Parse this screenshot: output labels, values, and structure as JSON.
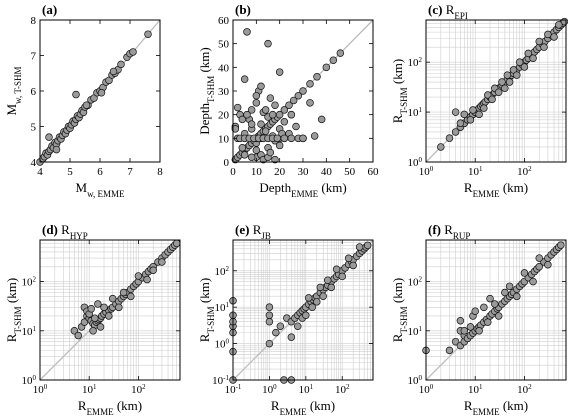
{
  "chart_data": [
    {
      "type": "scatter",
      "panel_label": "(a)",
      "panel_sub": "",
      "xlabel_main": "M",
      "xlabel_sub": "w, EMME",
      "xlabel_unit": "",
      "ylabel_main": "M",
      "ylabel_sub": "w, T-SHM",
      "ylabel_unit": "",
      "scale": "linear",
      "xlim": [
        4,
        8
      ],
      "ylim": [
        4,
        8
      ],
      "ticks": [
        4,
        5,
        6,
        7,
        8
      ],
      "tick_labels": [
        "4",
        "5",
        "6",
        "7",
        "8"
      ],
      "grid": false,
      "x": [
        4.0,
        4.1,
        4.15,
        4.2,
        4.25,
        4.3,
        4.35,
        4.4,
        4.45,
        4.5,
        4.55,
        4.6,
        4.65,
        4.7,
        4.75,
        4.8,
        4.85,
        4.9,
        4.95,
        5.0,
        5.05,
        5.1,
        5.15,
        5.2,
        5.25,
        5.3,
        5.35,
        5.4,
        5.45,
        5.5,
        5.6,
        5.7,
        5.8,
        5.9,
        6.0,
        6.1,
        6.2,
        6.3,
        6.4,
        6.5,
        6.6,
        6.7,
        6.9,
        7.0,
        7.1,
        7.6,
        4.3,
        4.55,
        5.2,
        5.55,
        6.05,
        6.45
      ],
      "y": [
        4.0,
        4.1,
        4.15,
        4.25,
        4.2,
        4.3,
        4.35,
        4.45,
        4.4,
        4.55,
        4.5,
        4.6,
        4.7,
        4.65,
        4.75,
        4.85,
        4.8,
        4.9,
        5.0,
        4.95,
        5.05,
        5.15,
        5.1,
        5.2,
        5.3,
        5.25,
        5.35,
        5.45,
        5.4,
        5.55,
        5.6,
        5.75,
        5.8,
        5.95,
        6.0,
        6.1,
        6.25,
        6.3,
        6.45,
        6.5,
        6.6,
        6.75,
        6.95,
        7.05,
        7.1,
        7.6,
        4.7,
        4.35,
        5.9,
        5.6,
        5.95,
        6.55
      ]
    },
    {
      "type": "scatter",
      "panel_label": "(b)",
      "panel_sub": "",
      "xlabel_main": "Depth",
      "xlabel_sub": "EMME",
      "xlabel_unit": " (km)",
      "ylabel_main": "Depth",
      "ylabel_sub": "T-SHM",
      "ylabel_unit": " (km)",
      "scale": "linear",
      "xlim": [
        0,
        60
      ],
      "ylim": [
        0,
        60
      ],
      "ticks": [
        0,
        10,
        20,
        30,
        40,
        50,
        60
      ],
      "tick_labels": [
        "0",
        "10",
        "20",
        "30",
        "40",
        "50",
        "60"
      ],
      "grid": false,
      "x": [
        1,
        2,
        3,
        4,
        5,
        6,
        7,
        8,
        9,
        10,
        11,
        12,
        13,
        14,
        15,
        16,
        17,
        18,
        19,
        20,
        22,
        24,
        26,
        28,
        30,
        33,
        36,
        40,
        43,
        46,
        1,
        2,
        3,
        4,
        5,
        5,
        7,
        8,
        8,
        10,
        10,
        10,
        11,
        12,
        12,
        13,
        14,
        15,
        15,
        16,
        17,
        18,
        18,
        20,
        20,
        22,
        24,
        25,
        27,
        30,
        33,
        35,
        38,
        10,
        12,
        13,
        15,
        16,
        18,
        8,
        10,
        20,
        22,
        25,
        28,
        5,
        6,
        10,
        12,
        14,
        15,
        17,
        20,
        21,
        25,
        30,
        3,
        5,
        7,
        9,
        11,
        13,
        15,
        17,
        19,
        22,
        8,
        4,
        2,
        6,
        1
      ],
      "y": [
        1,
        2,
        3,
        4,
        5,
        6,
        7,
        8,
        9,
        10,
        11,
        12,
        13,
        14,
        15,
        16,
        17,
        18,
        19,
        20,
        22,
        24,
        26,
        28,
        30,
        33,
        36,
        40,
        43,
        46,
        15,
        10,
        20,
        6,
        3,
        12,
        18,
        14,
        22,
        25,
        8,
        5,
        30,
        16,
        10,
        21,
        13,
        6,
        19,
        27,
        11,
        9,
        24,
        14,
        7,
        17,
        12,
        20,
        15,
        10,
        25,
        11,
        18,
        2,
        3,
        1,
        2,
        4,
        1,
        2,
        10,
        10,
        10,
        10,
        10,
        35,
        55,
        28,
        32,
        22,
        50,
        20,
        38,
        12,
        20,
        10,
        10,
        10,
        10,
        10,
        10,
        10,
        10,
        10,
        10,
        10,
        16,
        18,
        23,
        20,
        14
      ]
    },
    {
      "type": "scatter",
      "panel_label": "(c)",
      "panel_sub": "EPI",
      "xlabel_main": "R",
      "xlabel_sub": "EMME",
      "xlabel_unit": " (km)",
      "ylabel_main": "R",
      "ylabel_sub": "T-SHM",
      "ylabel_unit": " (km)",
      "scale": "log",
      "xlim": [
        1,
        700
      ],
      "ylim": [
        1,
        700
      ],
      "ticks": [
        1,
        10,
        100
      ],
      "tick_labels": [
        "10^0",
        "10^1",
        "10^2"
      ],
      "grid": true,
      "x": [
        2,
        3,
        4,
        5,
        5,
        6,
        6,
        7,
        7,
        8,
        8,
        9,
        9,
        10,
        10,
        11,
        12,
        13,
        14,
        15,
        16,
        18,
        20,
        22,
        25,
        28,
        30,
        35,
        40,
        45,
        50,
        55,
        60,
        70,
        80,
        90,
        100,
        110,
        120,
        140,
        160,
        180,
        200,
        230,
        260,
        300,
        350,
        400,
        450,
        500,
        550,
        600,
        650,
        4,
        5,
        6,
        8,
        9,
        12,
        15,
        18,
        22,
        25,
        30,
        35,
        40,
        45,
        50,
        60,
        70,
        80,
        100,
        120,
        150,
        200,
        250,
        300,
        400,
        500
      ],
      "y": [
        2,
        3,
        4,
        5,
        5,
        6,
        6,
        7,
        7,
        8,
        8,
        9,
        9,
        10,
        10,
        11,
        12,
        13,
        14,
        15,
        16,
        18,
        20,
        22,
        25,
        28,
        30,
        35,
        40,
        45,
        50,
        55,
        60,
        70,
        80,
        90,
        100,
        110,
        120,
        140,
        160,
        180,
        200,
        230,
        260,
        300,
        350,
        400,
        450,
        500,
        550,
        600,
        650,
        10,
        6,
        9,
        7,
        11,
        9,
        12,
        22,
        18,
        30,
        25,
        40,
        30,
        55,
        40,
        70,
        55,
        100,
        80,
        150,
        120,
        260,
        200,
        360,
        320,
        560
      ]
    },
    {
      "type": "scatter",
      "panel_label": "(d)",
      "panel_sub": "HYP",
      "xlabel_main": "R",
      "xlabel_sub": "EMME",
      "xlabel_unit": " (km)",
      "ylabel_main": "R",
      "ylabel_sub": "T-SHM",
      "ylabel_unit": " (km)",
      "scale": "log",
      "xlim": [
        1,
        700
      ],
      "ylim": [
        1,
        700
      ],
      "ticks": [
        1,
        10,
        100
      ],
      "tick_labels": [
        "10^0",
        "10^1",
        "10^2"
      ],
      "grid": true,
      "x": [
        5,
        6,
        7,
        8,
        9,
        10,
        11,
        12,
        13,
        14,
        15,
        16,
        17,
        18,
        20,
        22,
        25,
        28,
        30,
        35,
        40,
        45,
        50,
        55,
        60,
        70,
        80,
        90,
        100,
        120,
        140,
        160,
        180,
        200,
        250,
        300,
        350,
        400,
        450,
        500,
        550,
        600,
        8,
        9,
        10,
        11,
        12,
        13,
        15,
        17,
        20,
        25,
        30,
        40,
        50,
        70,
        100,
        150,
        200,
        300
      ],
      "y": [
        10,
        8,
        12,
        15,
        20,
        18,
        16,
        14,
        13,
        15,
        16,
        17,
        18,
        20,
        22,
        24,
        26,
        28,
        30,
        35,
        40,
        45,
        50,
        55,
        60,
        70,
        80,
        90,
        100,
        120,
        140,
        160,
        180,
        200,
        250,
        300,
        350,
        400,
        450,
        500,
        550,
        600,
        30,
        25,
        22,
        28,
        10,
        18,
        35,
        12,
        30,
        20,
        45,
        30,
        60,
        50,
        130,
        110,
        170,
        250
      ]
    },
    {
      "type": "scatter",
      "panel_label": "(e)",
      "panel_sub": "JB",
      "xlabel_main": "R",
      "xlabel_sub": "EMME",
      "xlabel_unit": " (km)",
      "ylabel_main": "R",
      "ylabel_sub": "T-SHM",
      "ylabel_unit": " (km)",
      "scale": "log",
      "xlim": [
        0.1,
        700
      ],
      "ylim": [
        0.1,
        700
      ],
      "ticks": [
        0.1,
        1,
        10,
        100
      ],
      "tick_labels": [
        "10^-1",
        "10^0",
        "10^1",
        "10^2"
      ],
      "grid": true,
      "x": [
        0.1,
        0.1,
        0.1,
        0.1,
        0.1,
        0.1,
        0.1,
        1,
        1,
        1,
        1,
        1.5,
        2,
        3,
        4,
        5,
        6,
        7,
        8,
        9,
        10,
        12,
        14,
        16,
        18,
        20,
        25,
        30,
        35,
        40,
        50,
        60,
        70,
        80,
        100,
        120,
        150,
        180,
        200,
        250,
        300,
        350,
        400,
        450,
        500,
        4,
        6,
        8,
        10,
        12,
        15,
        20,
        25,
        30,
        40,
        50,
        70,
        100,
        150,
        200,
        300,
        2.5,
        4
      ],
      "y": [
        0.1,
        0.6,
        2,
        3,
        4,
        6,
        15,
        4,
        10,
        1,
        6,
        2,
        3,
        5,
        4,
        5,
        6,
        7,
        8,
        9,
        10,
        12,
        14,
        16,
        18,
        20,
        25,
        30,
        35,
        40,
        50,
        60,
        70,
        80,
        100,
        120,
        150,
        180,
        200,
        250,
        300,
        350,
        400,
        450,
        500,
        1.5,
        3,
        5,
        6,
        18,
        10,
        14,
        35,
        20,
        55,
        35,
        110,
        70,
        220,
        140,
        450,
        0.1,
        0.1
      ]
    },
    {
      "type": "scatter",
      "panel_label": "(f)",
      "panel_sub": "RUP",
      "xlabel_main": "R",
      "xlabel_sub": "EMME",
      "xlabel_unit": " (km)",
      "ylabel_main": "R",
      "ylabel_sub": "T-SHM",
      "ylabel_unit": " (km)",
      "scale": "log",
      "xlim": [
        1,
        700
      ],
      "ylim": [
        1,
        700
      ],
      "ticks": [
        1,
        10,
        100
      ],
      "tick_labels": [
        "10^0",
        "10^1",
        "10^2"
      ],
      "grid": true,
      "x": [
        1,
        3,
        4,
        5,
        5,
        6,
        6,
        7,
        8,
        9,
        10,
        11,
        12,
        13,
        15,
        17,
        20,
        22,
        25,
        28,
        30,
        35,
        40,
        45,
        50,
        55,
        60,
        70,
        80,
        90,
        100,
        120,
        140,
        160,
        180,
        200,
        250,
        300,
        350,
        400,
        450,
        500,
        550,
        5,
        6,
        8,
        9,
        10,
        12,
        15,
        18,
        20,
        25,
        30,
        40,
        50,
        70,
        100,
        150,
        200,
        300
      ],
      "y": [
        4,
        4,
        6,
        5,
        10,
        6,
        8,
        7,
        8,
        9,
        10,
        11,
        12,
        13,
        15,
        17,
        20,
        22,
        25,
        28,
        30,
        35,
        40,
        45,
        50,
        55,
        60,
        70,
        80,
        90,
        100,
        120,
        140,
        160,
        180,
        200,
        250,
        300,
        350,
        400,
        450,
        500,
        550,
        16,
        10,
        12,
        20,
        25,
        10,
        30,
        15,
        45,
        35,
        20,
        60,
        80,
        50,
        150,
        100,
        300,
        220
      ]
    }
  ]
}
